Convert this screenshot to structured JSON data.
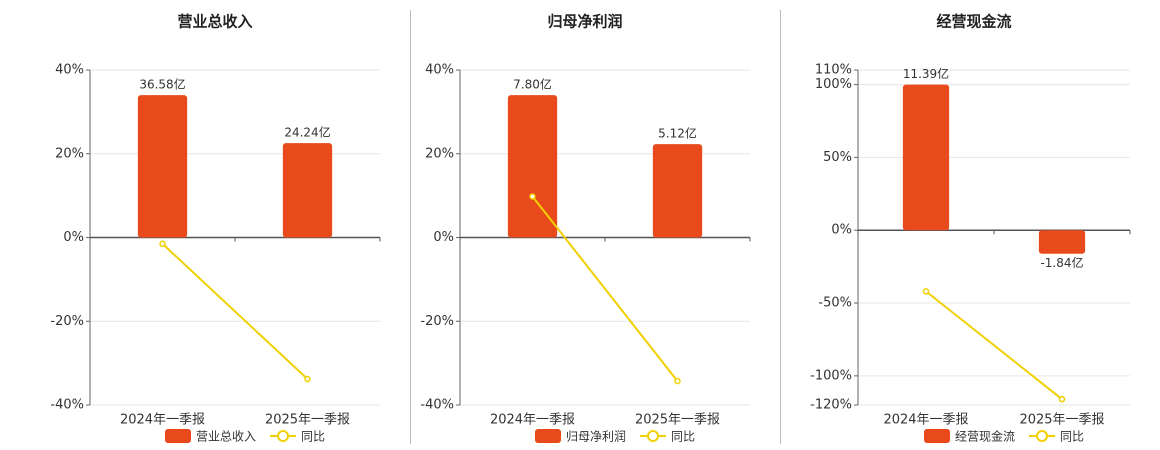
{
  "chart_data": [
    {
      "type": "bar",
      "title": "营业总收入",
      "categories": [
        "2024年一季报",
        "2025年一季报"
      ],
      "ylim": [
        -40,
        40
      ],
      "yticks": [
        {
          "value": 40,
          "label": "40%"
        },
        {
          "value": 20,
          "label": "20%"
        },
        {
          "value": 0,
          "label": "0%"
        },
        {
          "value": -20,
          "label": "-20%"
        },
        {
          "value": -40,
          "label": "-40%"
        }
      ],
      "y2lim": [
        -43.04,
        43.04
      ],
      "grid": true,
      "series": [
        {
          "name": "营业总收入",
          "type": "bar",
          "axis": "y2",
          "color": "#e84a1b",
          "values": [
            36.58,
            24.24
          ],
          "value_labels": [
            "36.58亿",
            "24.24亿"
          ]
        },
        {
          "name": "同比",
          "type": "line",
          "color": "#f0d000",
          "values": [
            -1.5,
            -33.8
          ]
        }
      ]
    },
    {
      "type": "bar",
      "title": "归母净利润",
      "categories": [
        "2024年一季报",
        "2025年一季报"
      ],
      "ylim": [
        -40,
        40
      ],
      "yticks": [
        {
          "value": 40,
          "label": "40%"
        },
        {
          "value": 20,
          "label": "20%"
        },
        {
          "value": 0,
          "label": "0%"
        },
        {
          "value": -20,
          "label": "-20%"
        },
        {
          "value": -40,
          "label": "-40%"
        }
      ],
      "y2lim": [
        -9.18,
        9.18
      ],
      "grid": true,
      "series": [
        {
          "name": "归母净利润",
          "type": "bar",
          "axis": "y2",
          "color": "#e84a1b",
          "values": [
            7.8,
            5.12
          ],
          "value_labels": [
            "7.80亿",
            "5.12亿"
          ]
        },
        {
          "name": "同比",
          "type": "line",
          "color": "#f0d000",
          "values": [
            9.8,
            -34.3
          ]
        }
      ]
    },
    {
      "type": "bar",
      "title": "经营现金流",
      "categories": [
        "2024年一季报",
        "2025年一季报"
      ],
      "ylim": [
        -120,
        110
      ],
      "yticks": [
        {
          "value": 110,
          "label": "110%"
        },
        {
          "value": 100,
          "label": "100%"
        },
        {
          "value": 50,
          "label": "50%"
        },
        {
          "value": 0,
          "label": "0%"
        },
        {
          "value": -50,
          "label": "-50%"
        },
        {
          "value": -100,
          "label": "-100%"
        },
        {
          "value": -120,
          "label": "-120%"
        }
      ],
      "y2lim": [
        -13.67,
        12.53
      ],
      "grid": true,
      "series": [
        {
          "name": "经营现金流",
          "type": "bar",
          "axis": "y2",
          "color": "#e84a1b",
          "values": [
            11.39,
            -1.84
          ],
          "value_labels": [
            "11.39亿",
            "-1.84亿"
          ]
        },
        {
          "name": "同比",
          "type": "line",
          "color": "#f0d000",
          "values": [
            -42,
            -116
          ]
        }
      ]
    }
  ]
}
